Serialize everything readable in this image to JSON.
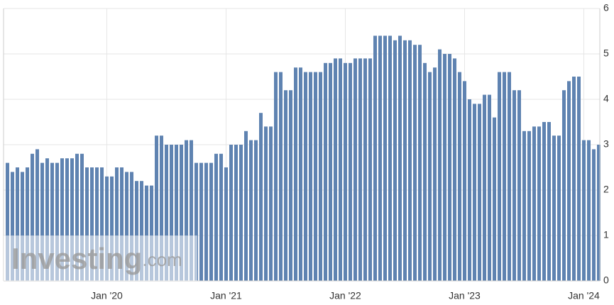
{
  "chart_data": {
    "type": "bar",
    "watermark": {
      "brand": "Investing",
      "suffix": ".com"
    },
    "categories": [
      null,
      null,
      null,
      null,
      null,
      null,
      null,
      null,
      null,
      null,
      null,
      null,
      null,
      null,
      null,
      null,
      null,
      null,
      null,
      null,
      "Jan '20",
      null,
      null,
      null,
      null,
      null,
      null,
      null,
      null,
      null,
      null,
      null,
      null,
      null,
      null,
      null,
      null,
      null,
      null,
      null,
      null,
      null,
      null,
      null,
      "Jan '21",
      null,
      null,
      null,
      null,
      null,
      null,
      null,
      null,
      null,
      null,
      null,
      null,
      null,
      null,
      null,
      null,
      null,
      null,
      null,
      null,
      null,
      null,
      null,
      "Jan '22",
      null,
      null,
      null,
      null,
      null,
      null,
      null,
      null,
      null,
      null,
      null,
      null,
      null,
      null,
      null,
      null,
      null,
      null,
      null,
      null,
      null,
      null,
      null,
      "Jan '23",
      null,
      null,
      null,
      null,
      null,
      null,
      null,
      null,
      null,
      null,
      null,
      null,
      null,
      null,
      null,
      null,
      null,
      null,
      null,
      null,
      null,
      null,
      null,
      "Jan '24",
      null,
      null,
      null
    ],
    "values": [
      2.6,
      2.4,
      2.5,
      2.4,
      2.5,
      2.8,
      2.9,
      2.6,
      2.7,
      2.6,
      2.6,
      2.7,
      2.7,
      2.7,
      2.8,
      2.8,
      2.5,
      2.5,
      2.5,
      2.5,
      2.3,
      2.3,
      2.5,
      2.5,
      2.4,
      2.4,
      2.2,
      2.2,
      2.1,
      2.1,
      3.2,
      3.2,
      3.0,
      3.0,
      3.0,
      3.0,
      3.1,
      3.1,
      2.6,
      2.6,
      2.6,
      2.6,
      2.8,
      2.8,
      2.5,
      3.0,
      3.0,
      3.0,
      3.3,
      3.1,
      3.1,
      3.7,
      3.4,
      3.4,
      4.6,
      4.6,
      4.2,
      4.2,
      4.7,
      4.7,
      4.6,
      4.6,
      4.6,
      4.6,
      4.8,
      4.8,
      4.9,
      4.9,
      4.8,
      4.8,
      4.9,
      4.9,
      4.9,
      4.9,
      5.4,
      5.4,
      5.4,
      5.4,
      5.3,
      5.4,
      5.3,
      5.3,
      5.2,
      5.2,
      4.8,
      4.6,
      4.7,
      5.1,
      5.0,
      5.0,
      4.9,
      4.6,
      4.4,
      4.0,
      3.9,
      3.9,
      4.1,
      4.1,
      3.6,
      4.6,
      4.6,
      4.6,
      4.2,
      4.2,
      3.3,
      3.3,
      3.4,
      3.4,
      3.5,
      3.5,
      3.2,
      3.2,
      4.2,
      4.4,
      4.5,
      4.5,
      3.1,
      3.1,
      2.9,
      3.0
    ],
    "color": "#5f83b1",
    "ylim": [
      0,
      6
    ],
    "yticks": [
      0,
      1,
      2,
      3,
      4,
      5,
      6
    ],
    "grid": true
  }
}
